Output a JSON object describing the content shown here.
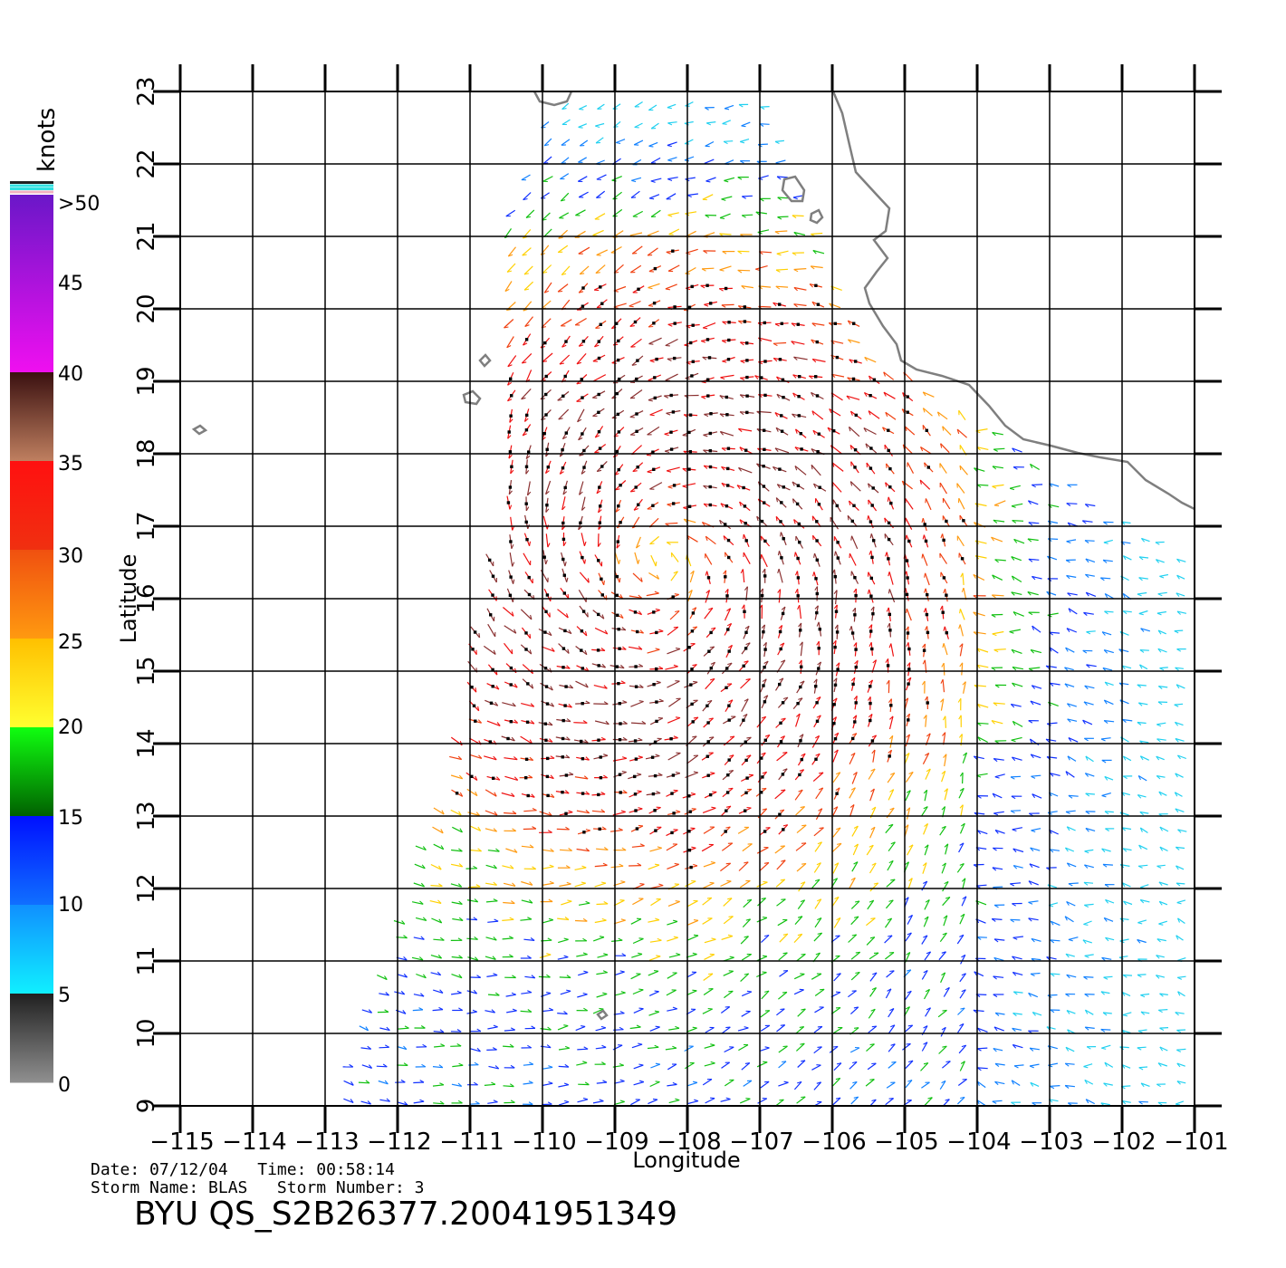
{
  "map": {
    "lon_min": -115,
    "lon_max": -101,
    "lat_min": 9,
    "lat_max": 23,
    "lon_ticks": [
      -115,
      -114,
      -113,
      -112,
      -111,
      -110,
      -109,
      -108,
      -107,
      -106,
      -105,
      -104,
      -103,
      -102,
      -101
    ],
    "lat_ticks": [
      9,
      10,
      11,
      12,
      13,
      14,
      15,
      16,
      17,
      18,
      19,
      20,
      21,
      22,
      23
    ],
    "x_label": "Longitude",
    "y_label": "Latitude",
    "grid": true,
    "swath_corners_lonlat": [
      [
        -109.8,
        23
      ],
      [
        -107,
        23
      ],
      [
        -105.5,
        19.5
      ],
      [
        -101,
        16.5
      ],
      [
        -101,
        9
      ],
      [
        -112.9,
        9
      ],
      [
        -111.2,
        14
      ],
      [
        -110.5,
        18
      ],
      [
        -110.6,
        21
      ]
    ],
    "storm_center_lonlat": [
      -108.3,
      16.5
    ],
    "vector_spacing_deg": 0.25,
    "colors": {
      "background": "#ffffff",
      "grid": "#000000",
      "coast": "#7f7f7f",
      "speed_marker": "#000000"
    }
  },
  "colorbar": {
    "unit": "knots",
    "labels": [
      ">50",
      "45",
      "40",
      "35",
      "30",
      "25",
      "20",
      "15",
      "10",
      "5",
      "0"
    ],
    "bands": [
      {
        "from": 50,
        "to": 40,
        "top": "#6a17c8",
        "bottom": "#f00ff0"
      },
      {
        "from": 40,
        "to": 35,
        "top": "#3a1010",
        "bottom": "#c08060"
      },
      {
        "from": 35,
        "to": 30,
        "top": "#ff1010",
        "bottom": "#f03010"
      },
      {
        "from": 30,
        "to": 25,
        "top": "#f05010",
        "bottom": "#ff9a10"
      },
      {
        "from": 25,
        "to": 20,
        "top": "#ffc000",
        "bottom": "#ffff30"
      },
      {
        "from": 20,
        "to": 15,
        "top": "#10ff10",
        "bottom": "#006000"
      },
      {
        "from": 15,
        "to": 10,
        "top": "#0010ff",
        "bottom": "#1070ff"
      },
      {
        "from": 10,
        "to": 5,
        "top": "#1090ff",
        "bottom": "#10f0ff"
      },
      {
        "from": 5,
        "to": 0,
        "top": "#202020",
        "bottom": "#909090"
      }
    ],
    "stripe_colors": [
      "#202020",
      "#30e0e0",
      "#30e0e0",
      "#f0b0c0"
    ]
  },
  "footer": {
    "line1": "Date: 07/12/04   Time: 00:58:14",
    "line2": "Storm Name: BLAS   Storm Number: 3",
    "product": "BYU QS_S2B26377.20041951349"
  }
}
